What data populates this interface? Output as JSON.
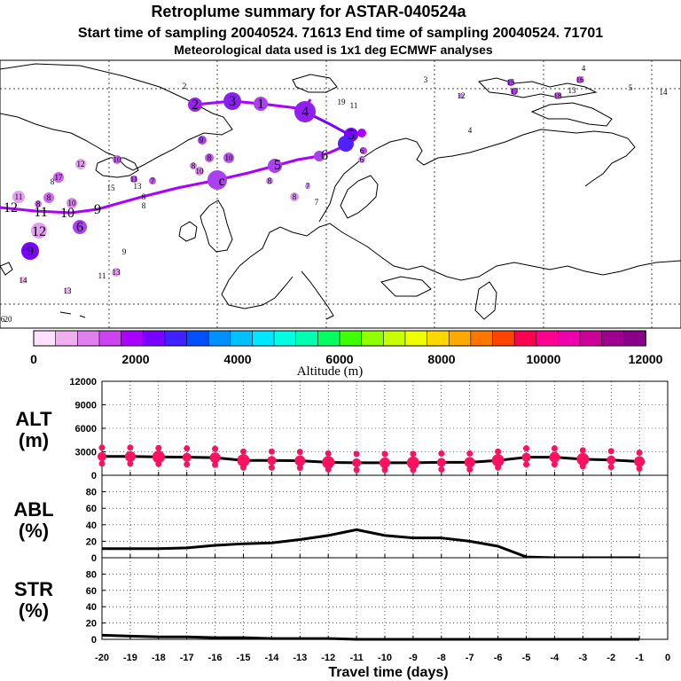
{
  "titles": {
    "line1": "Retroplume summary for ASTAR-040524a",
    "line2": "Start time of sampling 20040524. 71613     End time of sampling 20040524. 71701",
    "line3": "Meteorological data used is 1x1 deg ECMWF analyses"
  },
  "colorbar": {
    "colors": [
      "#ffe0ff",
      "#f0b0f0",
      "#e080f0",
      "#cc44f0",
      "#aa00ff",
      "#7a00ff",
      "#4020ff",
      "#0050ff",
      "#0090ff",
      "#00c0ff",
      "#00e8ff",
      "#00ffe0",
      "#00ffb0",
      "#00ff60",
      "#40ff00",
      "#90ff00",
      "#c8ff00",
      "#f0ff00",
      "#ffd800",
      "#ffaa00",
      "#ff7700",
      "#ff4400",
      "#ff0050",
      "#ff0090",
      "#ee00aa",
      "#cc0099",
      "#a00090",
      "#880088"
    ],
    "tick_labels": [
      "0",
      "2000",
      "4000",
      "6000",
      "8000",
      "10000",
      "12000"
    ],
    "label": "Altitude (m)"
  },
  "map": {
    "labels": [
      {
        "t": "2",
        "x": 208,
        "y": 97
      },
      {
        "t": "3",
        "x": 480,
        "y": 90
      },
      {
        "t": "4",
        "x": 658,
        "y": 77
      },
      {
        "t": "5",
        "x": 711,
        "y": 99
      },
      {
        "t": "14",
        "x": 748,
        "y": 104
      },
      {
        "t": "12",
        "x": 520,
        "y": 108
      },
      {
        "t": "15",
        "x": 576,
        "y": 93
      },
      {
        "t": "17",
        "x": 580,
        "y": 103
      },
      {
        "t": "16",
        "x": 654,
        "y": 90
      },
      {
        "t": "13",
        "x": 645,
        "y": 102
      },
      {
        "t": "18",
        "x": 629,
        "y": 108
      },
      {
        "t": "11",
        "x": 399,
        "y": 119
      },
      {
        "t": "19",
        "x": 385,
        "y": 115
      },
      {
        "t": "4",
        "x": 530,
        "y": 147
      },
      {
        "t": "9",
        "x": 227,
        "y": 158
      },
      {
        "t": "8",
        "x": 236,
        "y": 178
      },
      {
        "t": "10",
        "x": 258,
        "y": 178
      },
      {
        "t": "8",
        "x": 218,
        "y": 187
      },
      {
        "t": "10",
        "x": 225,
        "y": 193
      },
      {
        "t": "12",
        "x": 91,
        "y": 185
      },
      {
        "t": "10",
        "x": 132,
        "y": 180
      },
      {
        "t": "17",
        "x": 66,
        "y": 200
      },
      {
        "t": "11",
        "x": 151,
        "y": 202
      },
      {
        "t": "8",
        "x": 59,
        "y": 205
      },
      {
        "t": "7",
        "x": 172,
        "y": 204
      },
      {
        "t": "13",
        "x": 155,
        "y": 210
      },
      {
        "t": "15",
        "x": 125,
        "y": 212
      },
      {
        "t": "8",
        "x": 304,
        "y": 204
      },
      {
        "t": "7",
        "x": 347,
        "y": 210
      },
      {
        "t": "8",
        "x": 332,
        "y": 222
      },
      {
        "t": "7",
        "x": 357,
        "y": 228
      },
      {
        "t": "8",
        "x": 162,
        "y": 222
      },
      {
        "t": "8",
        "x": 162,
        "y": 232
      },
      {
        "t": "11",
        "x": 21,
        "y": 222
      },
      {
        "t": "8",
        "x": 55,
        "y": 223
      },
      {
        "t": "10",
        "x": 81,
        "y": 229
      },
      {
        "t": "8",
        "x": 43,
        "y": 230
      },
      {
        "t": "9",
        "x": 140,
        "y": 284
      },
      {
        "t": "14",
        "x": 26,
        "y": 316
      },
      {
        "t": "13",
        "x": 76,
        "y": 328
      },
      {
        "t": "11",
        "x": 115,
        "y": 311
      },
      {
        "t": "13",
        "x": 131,
        "y": 307
      },
      {
        "t": "6",
        "x": 408,
        "y": 170
      },
      {
        "t": "6",
        "x": 408,
        "y": 180
      },
      {
        "t": "20",
        "x": 9,
        "y": 360
      },
      {
        "t": "6",
        "x": 3,
        "y": 360
      }
    ]
  },
  "chart_data": [
    {
      "type": "scatter",
      "panel": "ALT",
      "ylabel": "ALT\n(m)",
      "ylabel_lines": [
        "ALT",
        "(m)"
      ],
      "ylim": [
        0,
        12000
      ],
      "yticks": [
        "0",
        "3000",
        "6000",
        "9000",
        "12000"
      ],
      "x": [
        -20,
        -19,
        -18,
        -17,
        -16,
        -15,
        -14,
        -13,
        -12,
        -11,
        -10,
        -9,
        -8,
        -7,
        -6,
        -5,
        -4,
        -3,
        -2,
        -1
      ],
      "series": [
        {
          "name": "mean altitude",
          "kind": "line",
          "values": [
            2400,
            2400,
            2350,
            2300,
            2250,
            1900,
            1900,
            1850,
            1650,
            1600,
            1600,
            1600,
            1650,
            1650,
            1900,
            2300,
            2300,
            2050,
            1950,
            1750
          ]
        },
        {
          "name": "plume spread",
          "kind": "dots",
          "values": [
            2400,
            2400,
            2350,
            2300,
            2250,
            1900,
            1900,
            1850,
            1650,
            1600,
            1600,
            1600,
            1650,
            1650,
            1900,
            2300,
            2300,
            2050,
            1950,
            1750
          ]
        }
      ]
    },
    {
      "type": "line",
      "panel": "ABL",
      "ylabel_lines": [
        "ABL",
        "(%)"
      ],
      "ylim": [
        0,
        100
      ],
      "yticks": [
        "0",
        "20",
        "40",
        "60",
        "80"
      ],
      "x": [
        -20,
        -19,
        -18,
        -17,
        -16,
        -15,
        -14,
        -13,
        -12,
        -11,
        -10,
        -9,
        -8,
        -7,
        -6,
        -5,
        -4,
        -3,
        -2,
        -1
      ],
      "series": [
        {
          "name": "ABL",
          "values": [
            11,
            11,
            11,
            12,
            15,
            17,
            18,
            22,
            27,
            34,
            27,
            24,
            24,
            20,
            14,
            1,
            0,
            0,
            0,
            0
          ]
        }
      ]
    },
    {
      "type": "line",
      "panel": "STR",
      "ylabel_lines": [
        "STR",
        "(%)"
      ],
      "ylim": [
        0,
        100
      ],
      "yticks": [
        "0",
        "20",
        "40",
        "60",
        "80"
      ],
      "x": [
        -20,
        -19,
        -18,
        -17,
        -16,
        -15,
        -14,
        -13,
        -12,
        -11,
        -10,
        -9,
        -8,
        -7,
        -6,
        -5,
        -4,
        -3,
        -2,
        -1
      ],
      "series": [
        {
          "name": "STR",
          "values": [
            5,
            4,
            3,
            3,
            2,
            2,
            1,
            1,
            1,
            0,
            0,
            0,
            0,
            0,
            0,
            0,
            0,
            0,
            0,
            0
          ]
        }
      ]
    }
  ],
  "xaxis": {
    "ticks": [
      "-20",
      "-19",
      "-18",
      "-17",
      "-16",
      "-15",
      "-14",
      "-13",
      "-12",
      "-11",
      "-10",
      "-9",
      "-8",
      "-7",
      "-6",
      "-5",
      "-4",
      "-3",
      "-2",
      "-1",
      "0"
    ],
    "label": "Travel time (days)"
  }
}
